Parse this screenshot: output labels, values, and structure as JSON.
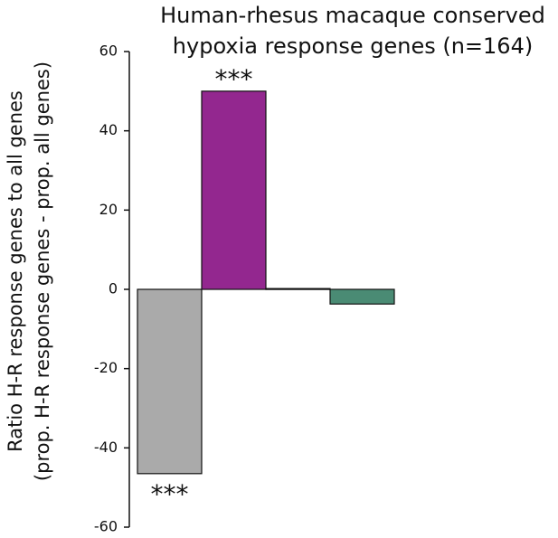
{
  "chart_data": {
    "type": "bar",
    "title": [
      "Human-rhesus macaque conserved",
      "hypoxia response genes (n=164)"
    ],
    "y_label": [
      "Ratio H-R response genes  to all genes",
      "(prop. H-R response genes - prop. all genes)"
    ],
    "categories": [
      null,
      null,
      null,
      null
    ],
    "values": [
      -46.5,
      50,
      0.2,
      -3.7
    ],
    "colors": [
      "#aaaaaa",
      "#93278f",
      "#222222",
      "#4a8b74"
    ],
    "annotations": [
      "***",
      "***",
      null,
      null
    ],
    "ylim": [
      -60,
      60
    ],
    "yticks": [
      -60,
      -40,
      -20,
      0,
      20,
      40,
      60
    ],
    "grid": false
  }
}
